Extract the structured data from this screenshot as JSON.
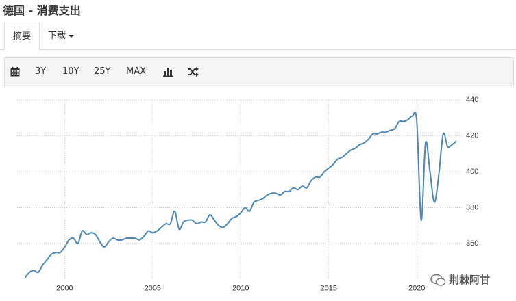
{
  "ui": {
    "title": "德国 - 消费支出",
    "tabs": [
      "摘要",
      "下载"
    ],
    "ranges": [
      "3Y",
      "10Y",
      "25Y",
      "MAX"
    ],
    "watermark": "荆棘阿甘"
  },
  "chart_data": {
    "type": "line",
    "x": [
      1997.75,
      1998,
      1998.25,
      1998.5,
      1998.75,
      1999,
      1999.25,
      1999.5,
      1999.75,
      2000,
      2000.25,
      2000.5,
      2000.75,
      2001,
      2001.25,
      2001.5,
      2001.75,
      2002,
      2002.25,
      2002.5,
      2002.75,
      2003,
      2003.25,
      2003.5,
      2003.75,
      2004,
      2004.25,
      2004.5,
      2004.75,
      2005,
      2005.25,
      2005.5,
      2005.75,
      2006,
      2006.25,
      2006.5,
      2006.75,
      2007,
      2007.25,
      2007.5,
      2007.75,
      2008,
      2008.25,
      2008.5,
      2008.75,
      2009,
      2009.25,
      2009.5,
      2009.75,
      2010,
      2010.25,
      2010.5,
      2010.75,
      2011,
      2011.25,
      2011.5,
      2011.75,
      2012,
      2012.25,
      2012.5,
      2012.75,
      2013,
      2013.25,
      2013.5,
      2013.75,
      2014,
      2014.25,
      2014.5,
      2014.75,
      2015,
      2015.25,
      2015.5,
      2015.75,
      2016,
      2016.25,
      2016.5,
      2016.75,
      2017,
      2017.25,
      2017.5,
      2017.75,
      2018,
      2018.25,
      2018.5,
      2018.75,
      2019,
      2019.25,
      2019.5,
      2019.75,
      2020,
      2020.25,
      2020.5,
      2020.75,
      2021,
      2021.25,
      2021.5,
      2021.75,
      2022,
      2022.25
    ],
    "series": [
      {
        "name": "消费支出",
        "color": "#4a86b8",
        "values": [
          341,
          344,
          345,
          344,
          348,
          351,
          354,
          355,
          355,
          358,
          362,
          363,
          360,
          367,
          365,
          366,
          365,
          361,
          358,
          361,
          363,
          362,
          362,
          363,
          363,
          363,
          362,
          364,
          367,
          366,
          367,
          369,
          371,
          371,
          378,
          368,
          372,
          373,
          373,
          371,
          372,
          372,
          376,
          373,
          370,
          369,
          371,
          374,
          375,
          377,
          380,
          378,
          383,
          384,
          385,
          387,
          388,
          388,
          387,
          389,
          389,
          391,
          390,
          392,
          391,
          395,
          397,
          397,
          400,
          402,
          404,
          407,
          408,
          410,
          412,
          413,
          415,
          416,
          418,
          421,
          421,
          422,
          422,
          423,
          424,
          428,
          428,
          429,
          431,
          428,
          373,
          416,
          400,
          383,
          398,
          421,
          414,
          415,
          417
        ]
      }
    ],
    "xlim": [
      1997.3,
      2022.6
    ],
    "xticks": [
      2000,
      2005,
      2010,
      2015,
      2020
    ],
    "ylim": [
      340,
      440
    ],
    "yticks": [
      360,
      380,
      400,
      420,
      440
    ],
    "grid": true
  }
}
